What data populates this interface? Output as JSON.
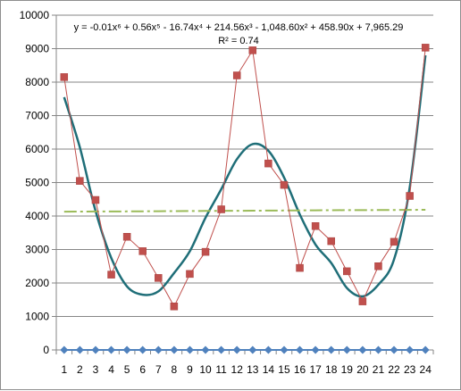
{
  "chart_data": {
    "type": "line",
    "x": [
      1,
      2,
      3,
      4,
      5,
      6,
      7,
      8,
      9,
      10,
      11,
      12,
      13,
      14,
      15,
      16,
      17,
      18,
      19,
      20,
      21,
      22,
      23,
      24
    ],
    "ylim": [
      0,
      10000
    ],
    "yticks": [
      0,
      1000,
      2000,
      3000,
      4000,
      5000,
      6000,
      7000,
      8000,
      9000,
      10000
    ],
    "ytick_labels": [
      "0",
      "1000",
      "2000",
      "3000",
      "4000",
      "5000",
      "6000",
      "7000",
      "8000",
      "9000",
      "10000"
    ],
    "xtick_labels": [
      "1",
      "2",
      "3",
      "4",
      "5",
      "6",
      "7",
      "8",
      "9",
      "10",
      "11",
      "12",
      "13",
      "14",
      "15",
      "16",
      "17",
      "18",
      "19",
      "20",
      "21",
      "22",
      "23",
      "24"
    ],
    "grid": "horizontal",
    "legend": "none",
    "series": [
      {
        "marker": "diamond",
        "color": "#4f81bd",
        "values": [
          0,
          0,
          0,
          0,
          0,
          0,
          0,
          0,
          0,
          0,
          0,
          0,
          0,
          0,
          0,
          0,
          0,
          0,
          0,
          0,
          0,
          0,
          0,
          0
        ]
      },
      {
        "marker": "square",
        "color": "#c0504d",
        "values": [
          8150,
          5050,
          4480,
          2250,
          3380,
          2950,
          2150,
          1300,
          2270,
          2930,
          4200,
          8200,
          8950,
          5570,
          4930,
          2450,
          3700,
          3250,
          2350,
          1450,
          2500,
          3230,
          4600,
          9030
        ]
      }
    ],
    "trendlines": [
      {
        "kind": "polynomial-6",
        "color": "#1f6e78",
        "values": [
          7550,
          6050,
          4150,
          2750,
          1900,
          1650,
          1750,
          2300,
          2950,
          3950,
          4800,
          5700,
          6150,
          5950,
          5150,
          4050,
          3150,
          2600,
          1850,
          1600,
          1950,
          2700,
          4850,
          8800
        ]
      },
      {
        "kind": "linear",
        "color": "#9bbb59",
        "style": "dash-dot",
        "values": [
          4130,
          4132,
          4135,
          4137,
          4140,
          4142,
          4145,
          4147,
          4150,
          4152,
          4155,
          4157,
          4160,
          4162,
          4165,
          4167,
          4170,
          4172,
          4175,
          4177,
          4180,
          4182,
          4185,
          4187
        ]
      }
    ],
    "annotation": {
      "equation": "y = -0.01x⁶ + 0.56x⁵ - 16.74x⁴ + 214.56x³ - 1,048.60x² + 458.90x + 7,965.29",
      "r_squared": "R² = 0.74"
    }
  }
}
